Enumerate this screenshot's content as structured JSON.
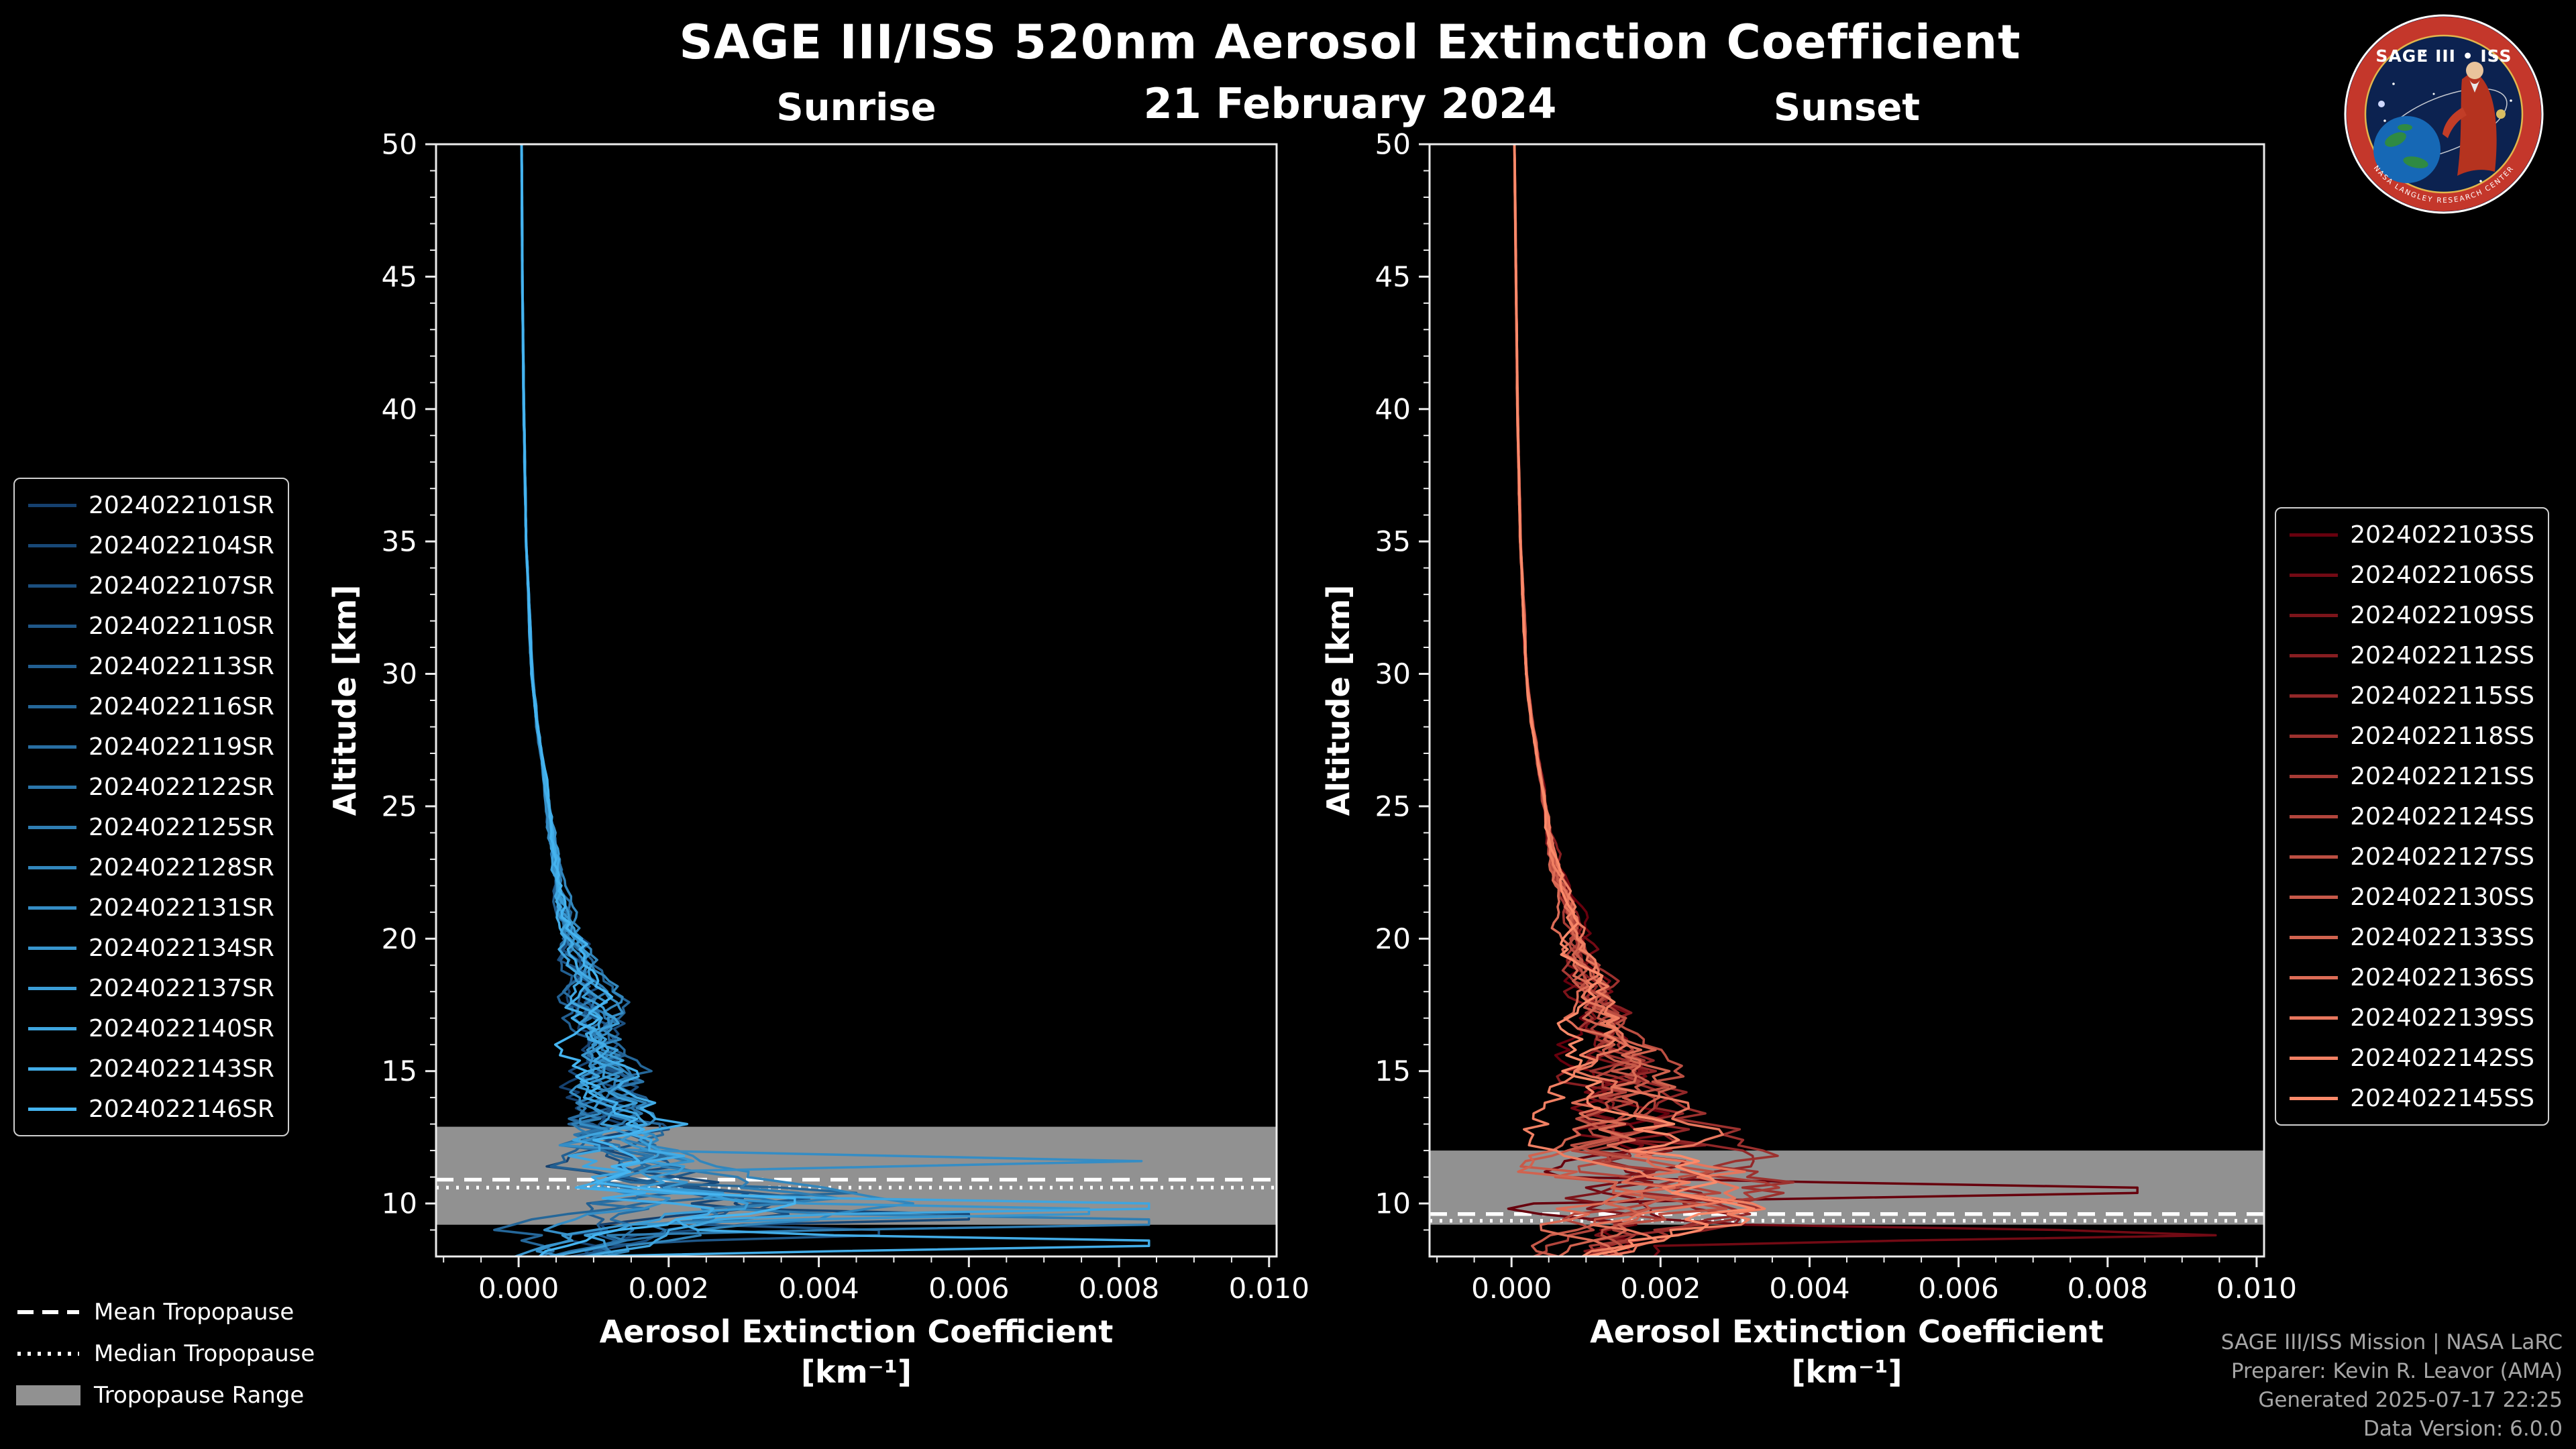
{
  "title": "SAGE III/ISS 520nm Aerosol Extinction Coefficient",
  "date": "21 February 2024",
  "logo": {
    "title": "SAGE III • ISS",
    "ring_text": "NASA LANGLEY RESEARCH CENTER"
  },
  "tropopause_legend": {
    "mean": "Mean Tropopause",
    "median": "Median Tropopause",
    "range": "Tropopause Range"
  },
  "credits": {
    "line1": "SAGE III/ISS Mission | NASA LaRC",
    "line2": "Preparer: Kevin R. Leavor (AMA)",
    "line3": "Generated 2025-07-17 22:25",
    "line4": "Data Version: 6.0.0"
  },
  "chart_data": [
    {
      "panel": "sunrise",
      "type": "line",
      "title": "Sunrise",
      "xlabel": "Aerosol Extinction Coefficient",
      "xlabel_units": "[km⁻¹]",
      "ylabel": "Altitude [km]",
      "xlim": [
        -0.0011,
        0.0101
      ],
      "ylim": [
        8,
        50
      ],
      "xticks": [
        0,
        0.002,
        0.004,
        0.006,
        0.008,
        0.01
      ],
      "xtick_labels": [
        "0.000",
        "0.002",
        "0.004",
        "0.006",
        "0.008",
        "0.010"
      ],
      "yticks": [
        10,
        15,
        20,
        25,
        30,
        35,
        40,
        45,
        50
      ],
      "grid": false,
      "legend_position": "outside-left",
      "line_color_range": [
        "#15406e",
        "#45b4f0"
      ],
      "series": [
        {
          "label": "2024022101SR",
          "color": "#15406e"
        },
        {
          "label": "2024022104SR",
          "color": "#184877"
        },
        {
          "label": "2024022107SR",
          "color": "#1b4f7f"
        },
        {
          "label": "2024022110SR",
          "color": "#1f5788"
        },
        {
          "label": "2024022113SR",
          "color": "#225f91"
        },
        {
          "label": "2024022116SR",
          "color": "#256799"
        },
        {
          "label": "2024022119SR",
          "color": "#286ea2"
        },
        {
          "label": "2024022122SR",
          "color": "#2b76ab"
        },
        {
          "label": "2024022125SR",
          "color": "#2f7eb3"
        },
        {
          "label": "2024022128SR",
          "color": "#3286bc"
        },
        {
          "label": "2024022131SR",
          "color": "#358dc5"
        },
        {
          "label": "2024022134SR",
          "color": "#3895cd"
        },
        {
          "label": "2024022137SR",
          "color": "#3b9dd6"
        },
        {
          "label": "2024022140SR",
          "color": "#3fa5df"
        },
        {
          "label": "2024022143SR",
          "color": "#42ace7"
        },
        {
          "label": "2024022146SR",
          "color": "#45b4f0"
        }
      ],
      "base_profile": {
        "altitude_km": [
          50,
          45,
          40,
          35,
          30,
          28,
          26,
          24,
          22,
          20,
          18,
          16,
          15,
          14,
          13,
          12,
          11.5,
          11,
          10.5,
          10,
          9.5,
          9,
          8.5,
          8
        ],
        "extinction": [
          4e-05,
          5e-05,
          7e-05,
          0.0001,
          0.00018,
          0.00025,
          0.00035,
          0.00045,
          0.00055,
          0.0007,
          0.0009,
          0.001,
          0.0011,
          0.0011,
          0.0012,
          0.0013,
          0.0014,
          0.0016,
          0.002,
          0.0024,
          0.002,
          0.0015,
          0.0011,
          0.0008
        ]
      },
      "spikes": [
        {
          "series": 2,
          "altitude_km": 12.9,
          "extinction": 0.0024
        },
        {
          "series": 10,
          "altitude_km": 11.6,
          "extinction": 0.0083
        },
        {
          "series": 5,
          "altitude_km": 10.45,
          "extinction": 0.005
        },
        {
          "series": 13,
          "altitude_km": 9.9,
          "extinction": 0.0105
        },
        {
          "series": 8,
          "altitude_km": 9.3,
          "extinction": 0.0105
        },
        {
          "series": 11,
          "altitude_km": 9.7,
          "extinction": 0.0095
        },
        {
          "series": 15,
          "altitude_km": 10.1,
          "extinction": 0.0046
        },
        {
          "series": 1,
          "altitude_km": 9.5,
          "extinction": 0.0075
        },
        {
          "series": 3,
          "altitude_km": 8.9,
          "extinction": 0.006
        },
        {
          "series": 14,
          "altitude_km": 8.5,
          "extinction": 0.0105
        }
      ],
      "tropopause": {
        "mean_km": 10.9,
        "median_km": 10.6,
        "range_km": [
          9.2,
          12.9
        ]
      }
    },
    {
      "panel": "sunset",
      "type": "line",
      "title": "Sunset",
      "xlabel": "Aerosol Extinction Coefficient",
      "xlabel_units": "[km⁻¹]",
      "ylabel": "Altitude [km]",
      "xlim": [
        -0.0011,
        0.0101
      ],
      "ylim": [
        8,
        50
      ],
      "xticks": [
        0,
        0.002,
        0.004,
        0.006,
        0.008,
        0.01
      ],
      "xtick_labels": [
        "0.000",
        "0.002",
        "0.004",
        "0.006",
        "0.008",
        "0.010"
      ],
      "yticks": [
        10,
        15,
        20,
        25,
        30,
        35,
        40,
        45,
        50
      ],
      "grid": false,
      "legend_position": "outside-right",
      "line_color_range": [
        "#67000d",
        "#fc8a6a"
      ],
      "series": [
        {
          "label": "2024022103SS",
          "color": "#67000d"
        },
        {
          "label": "2024022106SS",
          "color": "#720a14"
        },
        {
          "label": "2024022109SS",
          "color": "#7c141a"
        },
        {
          "label": "2024022112SS",
          "color": "#871e21"
        },
        {
          "label": "2024022115SS",
          "color": "#922728"
        },
        {
          "label": "2024022118SS",
          "color": "#9c312e"
        },
        {
          "label": "2024022121SS",
          "color": "#a73b35"
        },
        {
          "label": "2024022124SS",
          "color": "#b2453c"
        },
        {
          "label": "2024022127SS",
          "color": "#bc4f42"
        },
        {
          "label": "2024022130SS",
          "color": "#c75949"
        },
        {
          "label": "2024022133SS",
          "color": "#d1634f"
        },
        {
          "label": "2024022136SS",
          "color": "#dc6c56"
        },
        {
          "label": "2024022139SS",
          "color": "#e7765d"
        },
        {
          "label": "2024022142SS",
          "color": "#f18063"
        },
        {
          "label": "2024022145SS",
          "color": "#fc8a6a"
        }
      ],
      "base_profile": {
        "altitude_km": [
          50,
          45,
          40,
          35,
          30,
          28,
          26,
          24,
          22,
          20,
          18,
          16,
          15,
          14,
          13,
          12,
          11.5,
          11,
          10.5,
          10,
          9.5,
          9,
          8.5,
          8
        ],
        "extinction": [
          4e-05,
          6e-05,
          8e-05,
          0.00012,
          0.0002,
          0.00028,
          0.0004,
          0.0005,
          0.00065,
          0.0008,
          0.001,
          0.0013,
          0.0014,
          0.0015,
          0.0016,
          0.0017,
          0.0018,
          0.002,
          0.0022,
          0.002,
          0.0018,
          0.0015,
          0.0012,
          0.001
        ]
      },
      "spikes": [
        {
          "series": 0,
          "altitude_km": 10.5,
          "extinction": 0.0105
        },
        {
          "series": 1,
          "altitude_km": 8.85,
          "extinction": 0.0105
        },
        {
          "series": 12,
          "altitude_km": 10.2,
          "extinction": 0.003
        },
        {
          "series": 6,
          "altitude_km": 11.0,
          "extinction": 0.0028
        },
        {
          "series": 4,
          "altitude_km": 9.6,
          "extinction": 0.0032
        },
        {
          "series": 3,
          "altitude_km": 12.2,
          "extinction": 0.0026
        }
      ],
      "tropopause": {
        "mean_km": 9.6,
        "median_km": 9.35,
        "range_km": [
          9.2,
          12.0
        ]
      }
    }
  ]
}
